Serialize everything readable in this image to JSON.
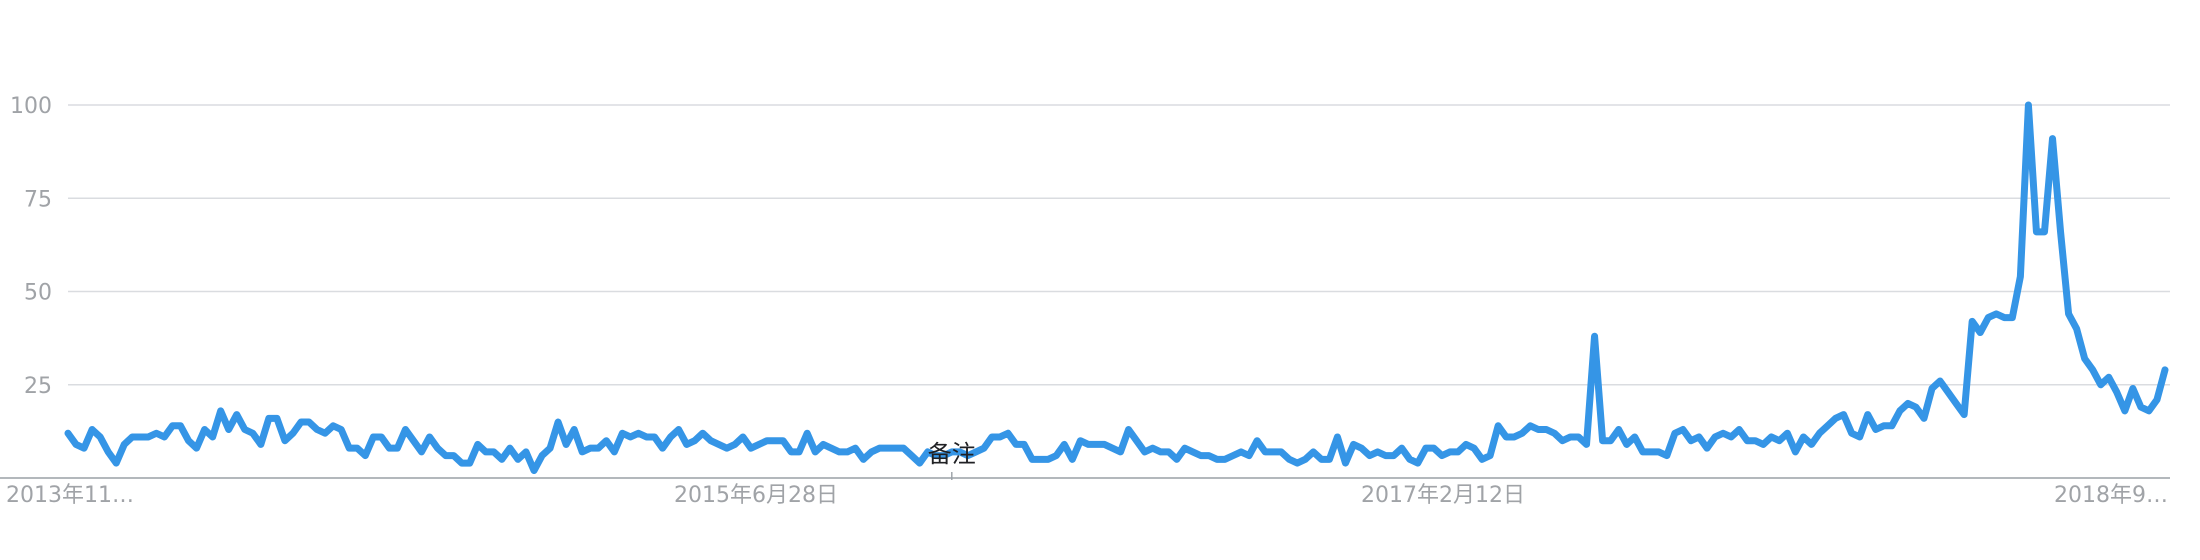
{
  "chart_data": {
    "type": "line",
    "title": "",
    "xlabel": "",
    "ylabel": "",
    "ylim": [
      0,
      100
    ],
    "yticks": [
      25,
      50,
      75,
      100
    ],
    "x_tick_labels": [
      "2013年11…",
      "2015年6月28日",
      "2017年2月12日",
      "2018年9…"
    ],
    "grid": true,
    "legend": "none",
    "line_color": "#3595e6",
    "annotation": {
      "label": "备注",
      "index": 110
    },
    "series": [
      {
        "values": [
          12,
          9,
          8,
          13,
          11,
          7,
          4,
          9,
          11,
          11,
          11,
          12,
          11,
          14,
          14,
          10,
          8,
          13,
          11,
          18,
          13,
          17,
          13,
          12,
          9,
          16,
          16,
          10,
          12,
          15,
          15,
          13,
          12,
          14,
          13,
          8,
          8,
          6,
          11,
          11,
          8,
          8,
          13,
          10,
          7,
          11,
          8,
          6,
          6,
          4,
          4,
          9,
          7,
          7,
          5,
          8,
          5,
          7,
          2,
          6,
          8,
          15,
          9,
          13,
          7,
          8,
          8,
          10,
          7,
          12,
          11,
          12,
          11,
          11,
          8,
          11,
          13,
          9,
          10,
          12,
          10,
          9,
          8,
          9,
          11,
          8,
          9,
          10,
          10,
          10,
          7,
          7,
          12,
          7,
          9,
          8,
          7,
          7,
          8,
          5,
          7,
          8,
          8,
          8,
          8,
          6,
          4,
          7,
          6,
          6,
          7,
          7,
          6,
          7,
          8,
          11,
          11,
          12,
          9,
          9,
          5,
          5,
          5,
          6,
          9,
          5,
          10,
          9,
          9,
          9,
          8,
          7,
          13,
          10,
          7,
          8,
          7,
          7,
          5,
          8,
          7,
          6,
          6,
          5,
          5,
          6,
          7,
          6,
          10,
          7,
          7,
          7,
          5,
          4,
          5,
          7,
          5,
          5,
          11,
          4,
          9,
          8,
          6,
          7,
          6,
          6,
          8,
          5,
          4,
          8,
          8,
          6,
          7,
          7,
          9,
          8,
          5,
          6,
          14,
          11,
          11,
          12,
          14,
          13,
          13,
          12,
          10,
          11,
          11,
          9,
          38,
          10,
          10,
          13,
          9,
          11,
          7,
          7,
          7,
          6,
          12,
          13,
          10,
          11,
          8,
          11,
          12,
          11,
          13,
          10,
          10,
          9,
          11,
          10,
          12,
          7,
          11,
          9,
          12,
          14,
          16,
          17,
          12,
          11,
          17,
          13,
          14,
          14,
          18,
          20,
          19,
          16,
          24,
          26,
          23,
          20,
          17,
          42,
          39,
          43,
          44,
          43,
          43,
          54,
          100,
          66,
          66,
          91,
          66,
          44,
          40,
          32,
          29,
          25,
          27,
          23,
          18,
          24,
          19,
          18,
          21,
          29
        ]
      }
    ]
  }
}
